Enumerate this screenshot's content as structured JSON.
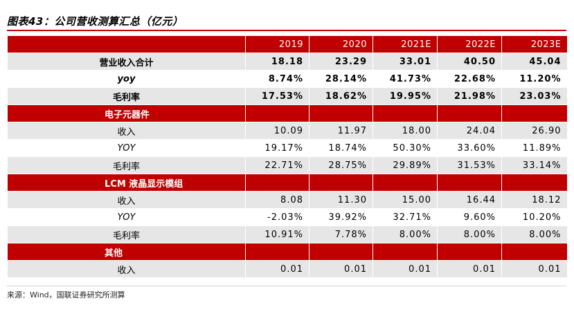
{
  "title": "图表43：公司营收测算汇总（亿元）",
  "columns": [
    "",
    "2019",
    "2020",
    "2021E",
    "2022E",
    "2023E"
  ],
  "rows": [
    {
      "label": "营业收入合计",
      "values": [
        "18.18",
        "23.29",
        "33.01",
        "40.50",
        "45.04"
      ],
      "style": "grey bold"
    },
    {
      "label": "yoy",
      "values": [
        "8.74%",
        "28.14%",
        "41.73%",
        "22.68%",
        "11.20%"
      ],
      "style": "white bold italic"
    },
    {
      "label": "毛利率",
      "values": [
        "17.53%",
        "18.62%",
        "19.95%",
        "21.98%",
        "23.03%"
      ],
      "style": "grey bold"
    },
    {
      "label": "电子元器件",
      "values": [
        "",
        "",
        "",
        "",
        ""
      ],
      "style": "red"
    },
    {
      "label": "收入",
      "values": [
        "10.09",
        "11.97",
        "18.00",
        "24.04",
        "26.90"
      ],
      "style": "grey"
    },
    {
      "label": "YOY",
      "values": [
        "19.17%",
        "18.74%",
        "50.30%",
        "33.60%",
        "11.89%"
      ],
      "style": "white italic"
    },
    {
      "label": "毛利率",
      "values": [
        "22.71%",
        "28.75%",
        "29.89%",
        "31.53%",
        "33.14%"
      ],
      "style": "grey"
    },
    {
      "label": "LCM 液晶显示模组",
      "values": [
        "",
        "",
        "",
        "",
        ""
      ],
      "style": "red"
    },
    {
      "label": "收入",
      "values": [
        "8.08",
        "11.30",
        "15.00",
        "16.44",
        "18.12"
      ],
      "style": "grey"
    },
    {
      "label": "YOY",
      "values": [
        "-2.03%",
        "39.92%",
        "32.71%",
        "9.60%",
        "10.20%"
      ],
      "style": "white italic"
    },
    {
      "label": "毛利率",
      "values": [
        "10.91%",
        "7.78%",
        "8.00%",
        "8.00%",
        "8.00%"
      ],
      "style": "grey"
    },
    {
      "label": "其他",
      "values": [
        "",
        "",
        "",
        "",
        ""
      ],
      "style": "red"
    },
    {
      "label": "收入",
      "values": [
        "0.01",
        "0.01",
        "0.01",
        "0.01",
        "0.01"
      ],
      "style": "grey"
    }
  ],
  "source": "来源：Wind，国联证券研究所测算"
}
